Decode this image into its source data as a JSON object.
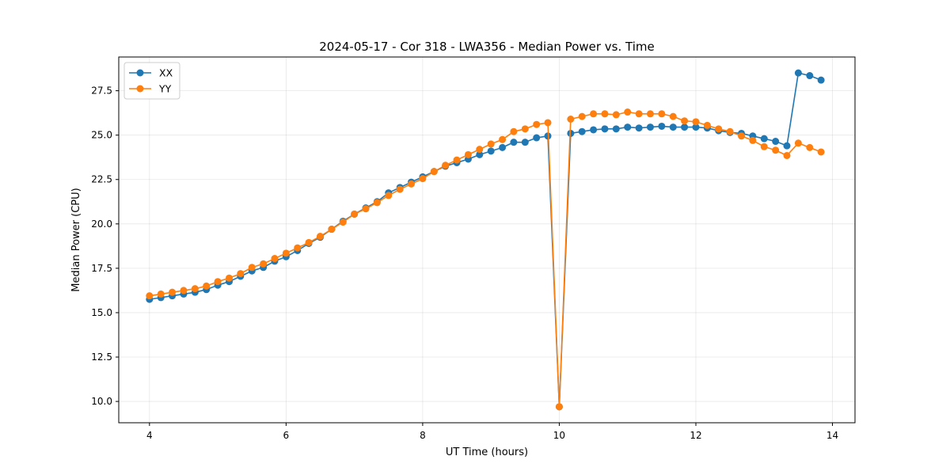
{
  "chart_data": {
    "type": "line",
    "title": "2024-05-17 - Cor 318 - LWA356 - Median Power vs. Time",
    "xlabel": "UT Time (hours)",
    "ylabel": "Median Power (CPU)",
    "xlim": [
      3.55,
      14.33
    ],
    "ylim": [
      8.8,
      29.4
    ],
    "xticks": [
      4,
      6,
      8,
      10,
      12,
      14
    ],
    "xtick_labels": [
      "4",
      "6",
      "8",
      "10",
      "12",
      "14"
    ],
    "yticks": [
      10.0,
      12.5,
      15.0,
      17.5,
      20.0,
      22.5,
      25.0,
      27.5
    ],
    "ytick_labels": [
      "10.0",
      "12.5",
      "15.0",
      "17.5",
      "20.0",
      "22.5",
      "25.0",
      "27.5"
    ],
    "grid": true,
    "legend_position": "top-left",
    "x": [
      4.0,
      4.167,
      4.333,
      4.5,
      4.667,
      4.833,
      5.0,
      5.167,
      5.333,
      5.5,
      5.667,
      5.833,
      6.0,
      6.167,
      6.333,
      6.5,
      6.667,
      6.833,
      7.0,
      7.167,
      7.333,
      7.5,
      7.667,
      7.833,
      8.0,
      8.167,
      8.333,
      8.5,
      8.667,
      8.833,
      9.0,
      9.167,
      9.333,
      9.5,
      9.667,
      9.833,
      10.0,
      10.167,
      10.333,
      10.5,
      10.667,
      10.833,
      11.0,
      11.167,
      11.333,
      11.5,
      11.667,
      11.833,
      12.0,
      12.167,
      12.333,
      12.5,
      12.667,
      12.833,
      13.0,
      13.167,
      13.333,
      13.5,
      13.667,
      13.833
    ],
    "series": [
      {
        "name": "XX",
        "color": "#1f77b4",
        "values": [
          15.75,
          15.85,
          15.95,
          16.05,
          16.15,
          16.3,
          16.55,
          16.75,
          17.05,
          17.35,
          17.55,
          17.9,
          18.15,
          18.5,
          18.9,
          19.25,
          19.7,
          20.15,
          20.55,
          20.9,
          21.25,
          21.75,
          22.05,
          22.35,
          22.65,
          22.95,
          23.25,
          23.45,
          23.65,
          23.9,
          24.1,
          24.3,
          24.6,
          24.6,
          24.85,
          24.95,
          9.7,
          25.1,
          25.2,
          25.3,
          25.35,
          25.35,
          25.45,
          25.4,
          25.45,
          25.5,
          25.45,
          25.45,
          25.45,
          25.4,
          25.25,
          25.15,
          25.1,
          24.95,
          24.8,
          24.65,
          24.4,
          28.5,
          28.35,
          28.1
        ]
      },
      {
        "name": "YY",
        "color": "#ff7f0e",
        "values": [
          15.95,
          16.05,
          16.15,
          16.25,
          16.35,
          16.5,
          16.75,
          16.95,
          17.2,
          17.55,
          17.75,
          18.05,
          18.35,
          18.65,
          18.95,
          19.3,
          19.7,
          20.1,
          20.55,
          20.85,
          21.2,
          21.6,
          21.95,
          22.25,
          22.55,
          22.95,
          23.3,
          23.6,
          23.9,
          24.2,
          24.5,
          24.75,
          25.2,
          25.35,
          25.6,
          25.7,
          9.7,
          25.9,
          26.05,
          26.2,
          26.2,
          26.15,
          26.3,
          26.2,
          26.2,
          26.2,
          26.05,
          25.8,
          25.75,
          25.55,
          25.35,
          25.2,
          24.95,
          24.7,
          24.35,
          24.15,
          23.85,
          24.55,
          24.3,
          24.05
        ]
      }
    ]
  }
}
